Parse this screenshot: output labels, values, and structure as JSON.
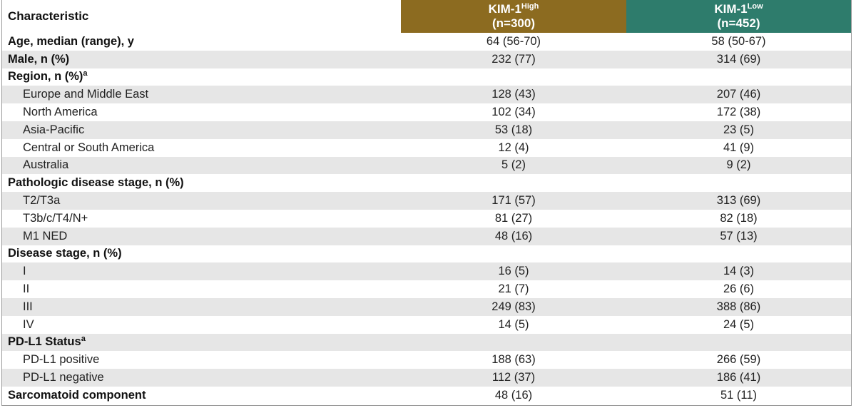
{
  "header": {
    "title": "Characteristic",
    "columns": [
      {
        "name": "KIM-1",
        "sup": "High",
        "n": "(n=300)"
      },
      {
        "name": "KIM-1",
        "sup": "Low",
        "n": "(n=452)"
      }
    ]
  },
  "rows": [
    {
      "label": "Age, median (range), y",
      "values": [
        "64 (56-70)",
        "58 (50-67)"
      ]
    },
    {
      "label": "Male, n (%)",
      "values": [
        "232 (77)",
        "314 (69)"
      ]
    },
    {
      "label": "Region, n (%)",
      "sup": "a",
      "items": [
        {
          "label": "Europe and Middle East",
          "values": [
            "128 (43)",
            "207 (46)"
          ]
        },
        {
          "label": "North America",
          "values": [
            "102 (34)",
            "172 (38)"
          ]
        },
        {
          "label": "Asia-Pacific",
          "values": [
            "53 (18)",
            "23 (5)"
          ]
        },
        {
          "label": "Central or South America",
          "values": [
            "12 (4)",
            "41 (9)"
          ]
        },
        {
          "label": "Australia",
          "values": [
            "5 (2)",
            "9 (2)"
          ]
        }
      ]
    },
    {
      "label": "Pathologic disease stage, n (%)",
      "items": [
        {
          "label": "T2/T3a",
          "values": [
            "171 (57)",
            "313 (69)"
          ]
        },
        {
          "label": "T3b/c/T4/N+",
          "values": [
            "81 (27)",
            "82 (18)"
          ]
        },
        {
          "label": "M1 NED",
          "values": [
            "48 (16)",
            "57 (13)"
          ]
        }
      ]
    },
    {
      "label": "Disease stage, n (%)",
      "items": [
        {
          "label": "I",
          "values": [
            "16 (5)",
            "14 (3)"
          ]
        },
        {
          "label": "II",
          "values": [
            "21 (7)",
            "26 (6)"
          ]
        },
        {
          "label": "III",
          "values": [
            "249 (83)",
            "388 (86)"
          ]
        },
        {
          "label": "IV",
          "values": [
            "14 (5)",
            "24 (5)"
          ]
        }
      ]
    },
    {
      "label": "PD-L1 Status",
      "sup": "a",
      "items": [
        {
          "label": "PD-L1 positive",
          "values": [
            "188 (63)",
            "266 (59)"
          ]
        },
        {
          "label": "PD-L1 negative",
          "values": [
            "112 (37)",
            "186 (41)"
          ]
        }
      ]
    },
    {
      "label": "Sarcomatoid component",
      "values": [
        "48 (16)",
        "51 (11)"
      ]
    }
  ]
}
